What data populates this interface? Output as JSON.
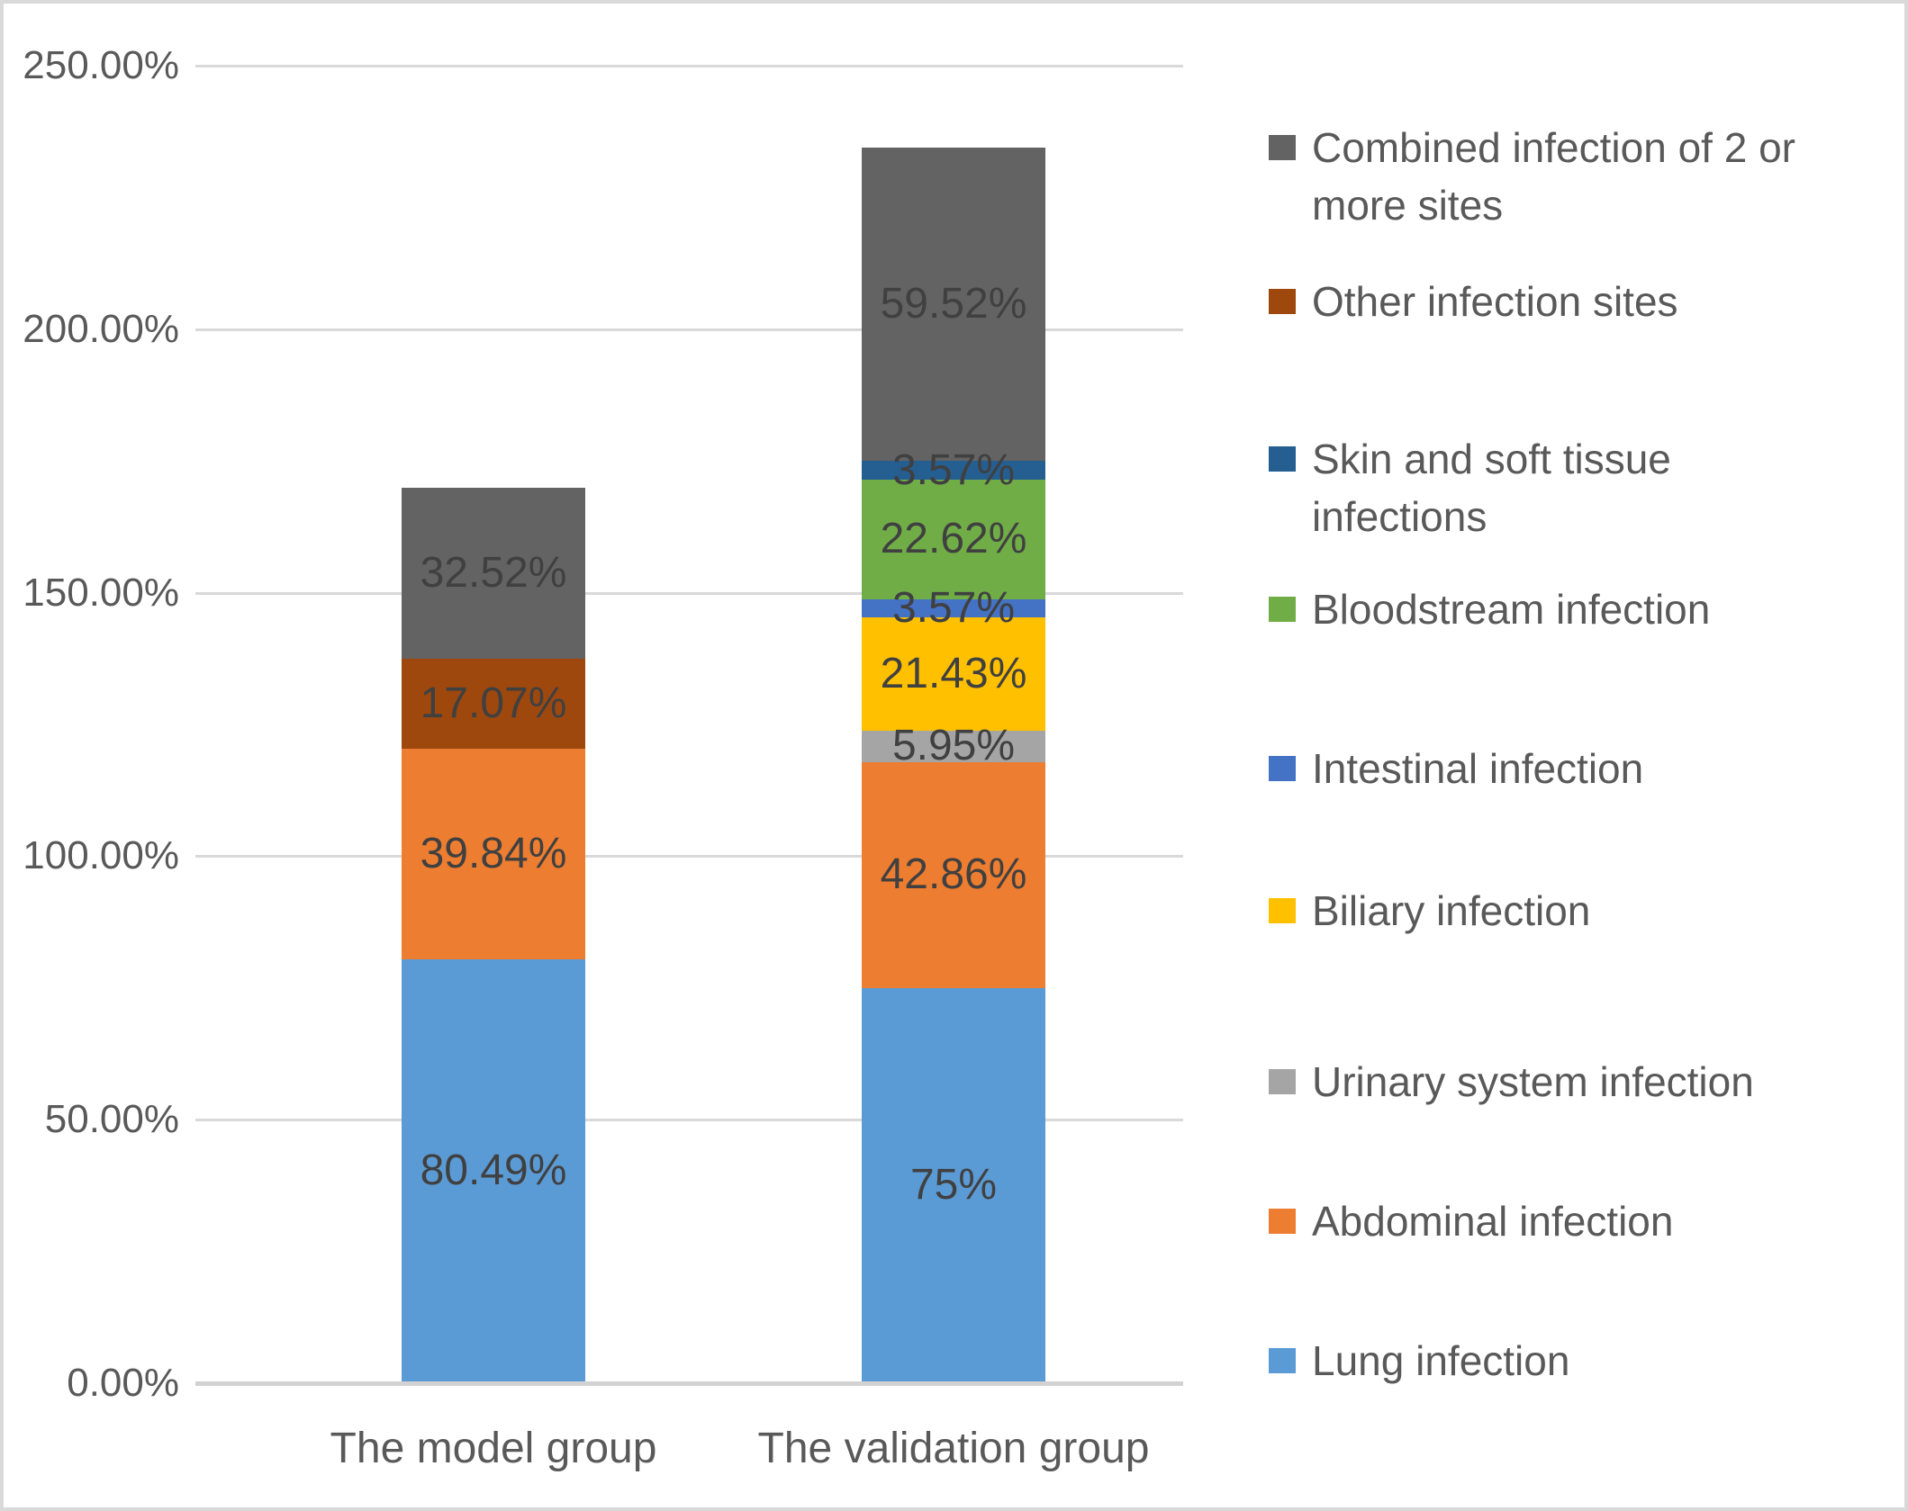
{
  "chart_data": {
    "type": "bar",
    "stacked": true,
    "title": "",
    "xlabel": "",
    "ylabel": "",
    "categories": [
      "The model group",
      "The validation group"
    ],
    "series": [
      {
        "name": "Lung infection",
        "color": "#5B9BD5",
        "values": [
          80.49,
          75.0
        ],
        "labels": [
          "80.49%",
          "75%"
        ]
      },
      {
        "name": "Abdominal infection",
        "color": "#ED7D31",
        "values": [
          39.84,
          42.86
        ],
        "labels": [
          "39.84%",
          "42.86%"
        ]
      },
      {
        "name": "Urinary system infection",
        "color": "#A5A5A5",
        "values": [
          0,
          5.95
        ],
        "labels": [
          "",
          "5.95%"
        ]
      },
      {
        "name": "Biliary infection",
        "color": "#FFC000",
        "values": [
          0,
          21.43
        ],
        "labels": [
          "",
          "21.43%"
        ]
      },
      {
        "name": "Intestinal infection",
        "color": "#4472C4",
        "values": [
          0,
          3.57
        ],
        "labels": [
          "",
          "3.57%"
        ]
      },
      {
        "name": "Bloodstream infection",
        "color": "#70AD47",
        "values": [
          0,
          22.62
        ],
        "labels": [
          "",
          "22.62%"
        ]
      },
      {
        "name": "Skin and soft tissue infections",
        "color": "#255E91",
        "values": [
          0,
          3.57
        ],
        "labels": [
          "",
          "3.57%"
        ]
      },
      {
        "name": "Other infection sites",
        "color": "#9E480E",
        "values": [
          17.07,
          0
        ],
        "labels": [
          "17.07%",
          ""
        ]
      },
      {
        "name": "Combined infection of 2 or more sites",
        "color": "#636363",
        "values": [
          32.52,
          59.52
        ],
        "labels": [
          "32.52%",
          "59.52%"
        ]
      }
    ],
    "y_axis": {
      "min": 0,
      "max": 250,
      "step": 50,
      "tick_values": [
        250,
        200,
        150,
        100,
        50,
        0
      ],
      "tick_labels": [
        "250.00%",
        "200.00%",
        "150.00%",
        "100.00%",
        "50.00%",
        "0.00%"
      ]
    },
    "grid": true,
    "legend_position": "right",
    "legend": [
      {
        "series": "Combined infection of 2 or more sites",
        "lines": [
          "Combined infection of 2 or",
          "more sites"
        ]
      },
      {
        "series": "Other infection sites",
        "lines": [
          "Other infection sites"
        ]
      },
      {
        "series": "Skin and soft tissue infections",
        "lines": [
          "Skin and soft tissue",
          "infections"
        ]
      },
      {
        "series": "Bloodstream infection",
        "lines": [
          "Bloodstream infection"
        ]
      },
      {
        "series": "Intestinal infection",
        "lines": [
          "Intestinal infection"
        ]
      },
      {
        "series": "Biliary infection",
        "lines": [
          "Biliary infection"
        ]
      },
      {
        "series": "Urinary system infection",
        "lines": [
          "Urinary system infection"
        ]
      },
      {
        "series": "Abdominal infection",
        "lines": [
          "Abdominal infection"
        ]
      },
      {
        "series": "Lung infection",
        "lines": [
          "Lung infection"
        ]
      }
    ],
    "colors": {
      "gridline": "#D9D9D9",
      "axis_line": "#D2D2D2",
      "tick_text": "#595959",
      "data_label_text": "#404040",
      "legend_text": "#595959",
      "frame_border": "#D9D9D9",
      "background": "#FFFFFF"
    }
  }
}
